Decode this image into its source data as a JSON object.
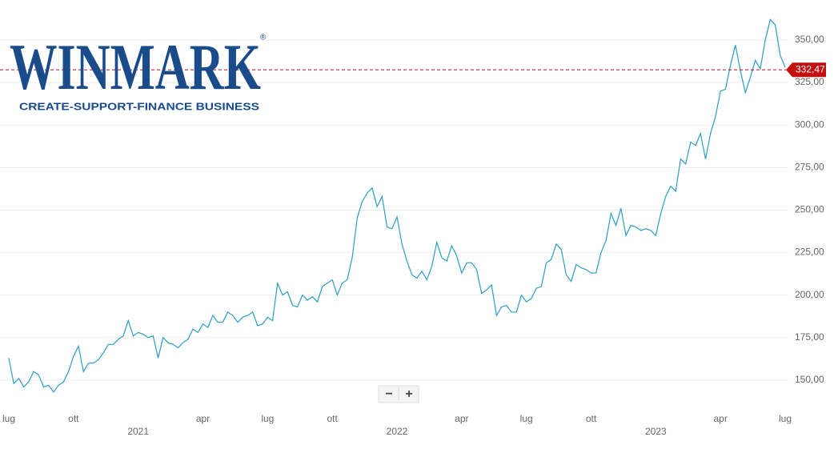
{
  "logo": {
    "name": "WINMARK",
    "mark": "®",
    "tagline": "CREATE-SUPPORT-FINANCE BUSINESS"
  },
  "controls": [
    "−",
    "+"
  ],
  "chart_data": {
    "type": "line",
    "categories": [
      "lug",
      null,
      null,
      null,
      null,
      null,
      null,
      null,
      null,
      null,
      null,
      null,
      null,
      "ott",
      null,
      null,
      null,
      null,
      null,
      null,
      null,
      null,
      null,
      null,
      null,
      null,
      "2021",
      null,
      null,
      null,
      null,
      null,
      null,
      null,
      null,
      null,
      null,
      null,
      null,
      "apr",
      null,
      null,
      null,
      null,
      null,
      null,
      null,
      null,
      null,
      null,
      null,
      null,
      "lug",
      null,
      null,
      null,
      null,
      null,
      null,
      null,
      null,
      null,
      null,
      null,
      null,
      "ott",
      null,
      null,
      null,
      null,
      null,
      null,
      null,
      null,
      null,
      null,
      null,
      null,
      "2022",
      null,
      null,
      null,
      null,
      null,
      null,
      null,
      null,
      null,
      null,
      null,
      null,
      "apr",
      null,
      null,
      null,
      null,
      null,
      null,
      null,
      null,
      null,
      null,
      null,
      null,
      "lug",
      null,
      null,
      null,
      null,
      null,
      null,
      null,
      null,
      null,
      null,
      null,
      null,
      "ott",
      null,
      null,
      null,
      null,
      null,
      null,
      null,
      null,
      null,
      null,
      null,
      null,
      "2023",
      null,
      null,
      null,
      null,
      null,
      null,
      null,
      null,
      null,
      null,
      null,
      null,
      "apr",
      null,
      null,
      null,
      null,
      null,
      null,
      null,
      null,
      null,
      null,
      null,
      null,
      "lug"
    ],
    "series": [
      {
        "color": "#2a9dc8",
        "values": [
          163,
          148,
          151,
          146,
          149,
          155,
          153,
          146,
          147,
          143,
          147,
          149,
          155,
          164,
          170,
          155,
          160,
          160,
          162,
          166,
          171,
          171,
          174,
          176,
          185,
          176,
          178,
          177,
          175,
          176,
          163,
          175,
          172,
          171,
          169,
          172,
          174,
          180,
          178,
          183,
          181,
          188,
          184,
          184,
          190,
          188,
          184,
          187,
          188,
          190,
          182,
          183,
          187,
          185,
          207,
          200,
          202,
          194,
          193,
          200,
          197,
          199,
          196,
          205,
          207,
          209,
          200,
          207,
          209,
          222,
          245,
          255,
          260,
          263,
          252,
          258,
          240,
          239,
          246,
          230,
          220,
          212,
          210,
          214,
          209,
          217,
          231,
          222,
          220,
          229,
          223,
          213,
          219,
          219,
          215,
          201,
          203,
          206,
          188,
          193,
          194,
          190,
          190,
          200,
          196,
          198,
          204,
          205,
          219,
          221,
          230,
          227,
          212,
          208,
          218,
          216,
          215,
          213,
          213,
          225,
          232,
          248,
          241,
          251,
          235,
          241,
          240,
          238,
          239,
          238,
          235,
          248,
          258,
          264,
          261,
          280,
          277,
          290,
          288,
          295,
          280,
          295,
          305,
          320,
          321,
          335,
          347,
          332,
          319,
          328,
          338,
          333,
          350,
          362,
          359,
          341,
          334
        ]
      }
    ],
    "ylim": [
      133.5,
      373.5
    ],
    "yticks": [
      {
        "value": 150,
        "label": "150,00"
      },
      {
        "value": 175,
        "label": "175,00"
      },
      {
        "value": 200,
        "label": "200,00"
      },
      {
        "value": 225,
        "label": "225,00"
      },
      {
        "value": 250,
        "label": "250,00"
      },
      {
        "value": 275,
        "label": "275,00"
      },
      {
        "value": 300,
        "label": "300,00"
      },
      {
        "value": 325,
        "label": "325,00"
      },
      {
        "value": 350,
        "label": "350,00"
      }
    ],
    "grid": true,
    "last_price": {
      "value": 332.47,
      "label": "332,47",
      "color": "#c40f0f"
    }
  }
}
